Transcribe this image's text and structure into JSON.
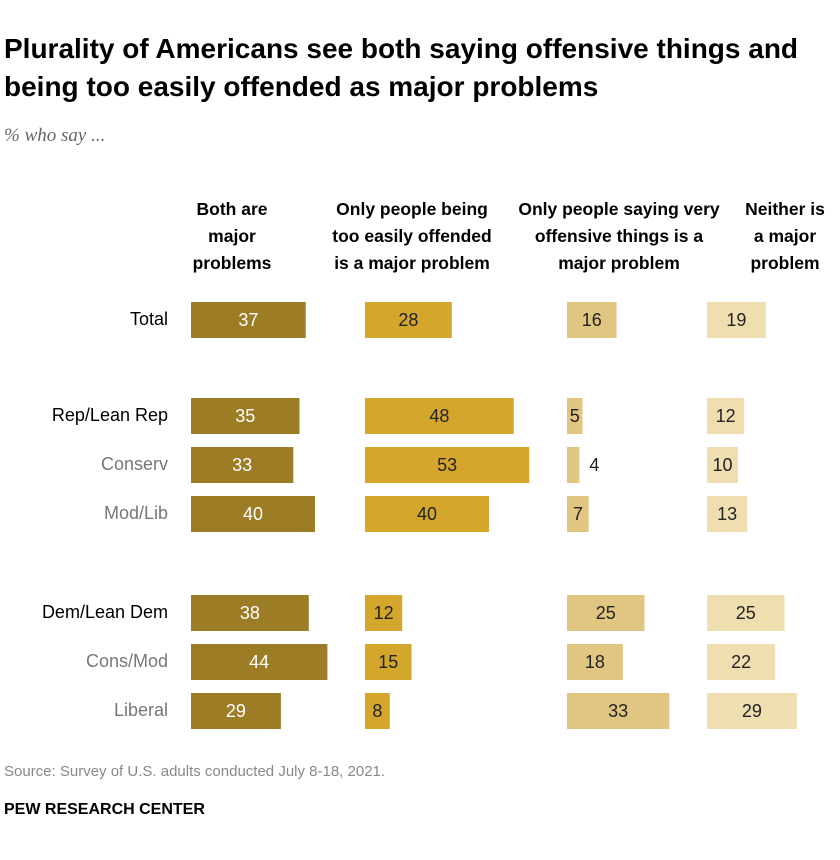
{
  "chart_data": {
    "type": "bar",
    "title": "Plurality of Americans see both saying offensive things and being too easily offended as major problems",
    "subtitle": "% who say ...",
    "categories": [
      "Total",
      "Rep/Lean Rep",
      "Conserv",
      "Mod/Lib",
      "Dem/Lean Dem",
      "Cons/Mod",
      "Liberal"
    ],
    "series": [
      {
        "name": "Both are major problems",
        "color": "#9c7c24",
        "values": [
          37,
          35,
          33,
          40,
          38,
          44,
          29
        ]
      },
      {
        "name": "Only people being too easily offended is a major problem",
        "color": "#d4a72c",
        "values": [
          28,
          48,
          53,
          40,
          12,
          15,
          8
        ]
      },
      {
        "name": "Only people saying very offensive things is a major problem",
        "color": "#e0c680",
        "values": [
          16,
          5,
          4,
          7,
          25,
          18,
          33
        ]
      },
      {
        "name": "Neither is a major problem",
        "color": "#efdfb0",
        "values": [
          19,
          12,
          10,
          13,
          25,
          22,
          29
        ]
      }
    ],
    "source": "Source: Survey of U.S. adults conducted July 8-18, 2021.",
    "note": "PEW RESEARCH CENTER"
  }
}
